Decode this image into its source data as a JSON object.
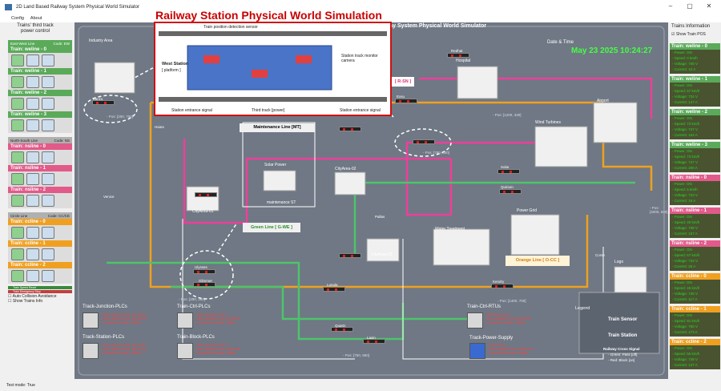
{
  "window": {
    "title": "2D Land Based Railway System Physical World Simulator",
    "buttons": [
      "–",
      "▢",
      "✕"
    ]
  },
  "menu": [
    "Config",
    "About"
  ],
  "overlay_title": "Railway Station Physical World Simulation",
  "main": {
    "title": "Railway System Physical World Simulator"
  },
  "left_panel": {
    "title": "Trains' third track power control",
    "groups": [
      {
        "line": "East-West Line",
        "code": "Code: EW",
        "color": "#5aaa5a",
        "trains": [
          "Train: weline - 0",
          "Train: weline - 1",
          "Train: weline - 2",
          "Train: weline - 3"
        ]
      },
      {
        "line": "North-South Line",
        "code": "Code: NS",
        "color": "#e25a8a",
        "trains": [
          "Train: nsline - 0",
          "Train: nsline - 1",
          "Train: nsline - 2"
        ]
      },
      {
        "line": "Circle Line",
        "code": "Code: CC/CE",
        "color": "#f0a020",
        "trains": [
          "Train: ccline - 0",
          "Train: ccline - 1",
          "Train: ccline - 2"
        ]
      }
    ],
    "legend_reset": "Train Speed Reset",
    "legend_break": "Train Emergency Stop",
    "checkboxes": [
      "Auto Collision Avoidance",
      "Show Trains Info"
    ]
  },
  "right_panel": {
    "title": "Trains Information",
    "show_pos": "Show Train POS",
    "trains": [
      {
        "name": "Train: weline - 0",
        "power": "- Power: ON",
        "speed": "- Speed: 0 km/h",
        "voltage": "- Voltage: 746 V",
        "current": "- Current: 12 A",
        "color": "#4a5330"
      },
      {
        "name": "Train: weline - 1",
        "power": "- Power: ON",
        "speed": "- Speed: 67 km/h",
        "voltage": "- Voltage: 734 V",
        "current": "- Current: 147 A",
        "color": "#4a5330"
      },
      {
        "name": "Train: weline - 2",
        "power": "- Power: ON",
        "speed": "- Speed: 73 km/h",
        "voltage": "- Voltage: 747 V",
        "current": "- Current: 164 A",
        "color": "#4a5330"
      },
      {
        "name": "Train: weline - 3",
        "power": "- Power: ON",
        "speed": "- Speed: 73 km/h",
        "voltage": "- Voltage: 747 V",
        "current": "- Current: 200 A",
        "color": "#4a5330"
      },
      {
        "name": "Train: nsline - 0",
        "power": "- Power: ON",
        "speed": "- Speed: 5 km/h",
        "voltage": "- Voltage: 733 V",
        "current": "- Current: 16 A",
        "color": "#8a3a5a"
      },
      {
        "name": "Train: nsline - 1",
        "power": "- Power: ON",
        "speed": "- Speed: 49 km/h",
        "voltage": "- Voltage: 738 V",
        "current": "- Current: 157 A",
        "color": "#8a3a5a"
      },
      {
        "name": "Train: nsline - 2",
        "power": "- Power: ON",
        "speed": "- Speed: 67 km/h",
        "voltage": "- Voltage: 734 V",
        "current": "- Current: 25 A",
        "color": "#8a3a5a"
      },
      {
        "name": "Train: ccline - 0",
        "power": "- Power: ON",
        "speed": "- Speed: 45 km/h",
        "voltage": "- Voltage: 745 V",
        "current": "- Current: 117 A",
        "color": "#7a5020"
      },
      {
        "name": "Train: ccline - 1",
        "power": "- Power: ON",
        "speed": "- Speed: 81 km/h",
        "voltage": "- Voltage: 750 V",
        "current": "- Current: 173 A",
        "color": "#7a5020"
      },
      {
        "name": "Train: ccline - 2",
        "power": "- Power: ON",
        "speed": "- Speed: 56 km/h",
        "voltage": "- Voltage: 748 V",
        "current": "- Current: 137 A",
        "color": "#7a5020"
      }
    ]
  },
  "datetime": {
    "label": "Date & Time",
    "value": "May 23 2025 10:24:27"
  },
  "areas": {
    "industry": "Industry Area",
    "hospital": "Hospital",
    "airport": "Airport",
    "wind": "Wind Turbines",
    "solar": "Solar Power",
    "city1": "CityArea-01",
    "city2": "CityArea-02",
    "city3": "CityArea-03",
    "power_grid": "Power Grid",
    "water": "Water Treatment",
    "logo": "Logo"
  },
  "lines": {
    "maintenance": "Maintenance Line [MT]",
    "green": "Green Line [ G-WE ]",
    "orange": "Orange Line [ O-CC ]",
    "pink": "[ R-SN ]",
    "maint_st": "maintenance ST"
  },
  "stations": [
    "Tianzu",
    "Haiea",
    "Venice",
    "Ulysses",
    "Glimmer",
    "Lunula",
    "Quartz",
    "Laxin",
    "Kendry",
    "Corse",
    "Pallas",
    "Solar",
    "Redhat",
    "Quirium",
    "Exsu"
  ],
  "plcs": {
    "junction": {
      "title": "Track-Junction-PLCs",
      "lines": [
        "[ PLC-00, PLC-01, PLC-02 ]",
        "Last Update Time: 00:00:00",
        "Connection State: offline"
      ]
    },
    "station": {
      "title": "Track-Station-PLCs",
      "lines": [
        "[ PLC-00, PLC-01, PLC-02 ]",
        "Last Update Time: 00:00:00",
        "Connection State: offline"
      ]
    },
    "ctrl": {
      "title": "Train-Ctrl-PLCs",
      "lines": [
        "[ PLC-00, PLC-01 ]",
        "Last Update Time: 00:00:00",
        "Connection State: offline"
      ]
    },
    "block": {
      "title": "Train-Block-PLCs",
      "lines": [
        "[ PLC-00, PLC-01 ]",
        "Last Update Time: 00:00:00",
        "Connection State: offline"
      ]
    },
    "rtu": {
      "title": "Train-Ctrl-RTUs",
      "lines": [
        "[ RTU-01, 02 ]",
        "Last Update Time: 00:00:00",
        "Connection State: offline"
      ]
    },
    "power": {
      "title": "Track-Power-Supply",
      "lines": [
        "[ PLC-01 ]",
        "Last Update Time: 00:00:00",
        "Connection State: offline"
      ]
    }
  },
  "legend": {
    "title": "Legend",
    "sensor": "Train Sensor",
    "station": "Train Station",
    "signal_title": "Railway Cross Signal",
    "green": "- Green: Pass [off]",
    "red": "- Red: Block [on]"
  },
  "positions": [
    "- Pos: [200, 700]",
    "- Pos: [780, 300]",
    "- Pos: [1200, 330]",
    "- Pos: [280, 360]",
    "- Pos: [1400, 700]",
    "- Pos: [750, 950]",
    "- Pos: [4000, 500]"
  ],
  "station_overlay": {
    "west_station": "West Station",
    "platform": "[ platform ]",
    "top_label": "Train position detection sensor",
    "left_sig": "Station entrance signal",
    "right_sig": "Station entrance signal",
    "third": "Third track [power]",
    "monitor": "Station track monitor camera"
  },
  "status": "Test mode: True"
}
